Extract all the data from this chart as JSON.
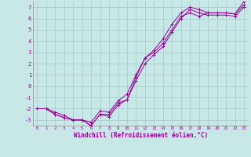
{
  "title": "",
  "xlabel": "Windchill (Refroidissement éolien,°C)",
  "ylabel": "",
  "bg_color": "#c8e8e8",
  "grid_color": "#a8cece",
  "line_color": "#990099",
  "marker": "+",
  "xlim": [
    -0.5,
    23.5
  ],
  "ylim": [
    -3.5,
    7.5
  ],
  "xticks": [
    0,
    1,
    2,
    3,
    4,
    5,
    6,
    7,
    8,
    9,
    10,
    11,
    12,
    13,
    14,
    15,
    16,
    17,
    18,
    19,
    20,
    21,
    22,
    23
  ],
  "yticks": [
    -3,
    -2,
    -1,
    0,
    1,
    2,
    3,
    4,
    5,
    6,
    7
  ],
  "series1_x": [
    0,
    1,
    2,
    3,
    4,
    5,
    6,
    7,
    8,
    9,
    10,
    11,
    12,
    13,
    14,
    15,
    16,
    17,
    18,
    19,
    20,
    21,
    22,
    23
  ],
  "series1_y": [
    -2.0,
    -2.0,
    -2.3,
    -2.6,
    -3.0,
    -3.0,
    -3.2,
    -2.2,
    -2.3,
    -1.3,
    -0.7,
    1.0,
    2.5,
    3.0,
    3.8,
    5.0,
    6.2,
    6.5,
    6.2,
    6.5,
    6.5,
    6.5,
    6.4,
    7.2
  ],
  "series2_x": [
    0,
    1,
    2,
    3,
    4,
    5,
    6,
    7,
    8,
    9,
    10,
    11,
    12,
    13,
    14,
    15,
    16,
    17,
    18,
    19,
    20,
    21,
    22,
    23
  ],
  "series2_y": [
    -2.0,
    -2.0,
    -2.5,
    -2.8,
    -3.0,
    -3.0,
    -3.5,
    -2.5,
    -2.7,
    -1.7,
    -1.2,
    0.5,
    2.0,
    2.8,
    3.5,
    4.8,
    6.0,
    6.8,
    6.5,
    6.3,
    6.3,
    6.3,
    6.2,
    7.0
  ],
  "series3_x": [
    0,
    1,
    2,
    3,
    4,
    5,
    6,
    7,
    8,
    9,
    10,
    11,
    12,
    13,
    14,
    15,
    16,
    17,
    18,
    19,
    20,
    21,
    22,
    23
  ],
  "series3_y": [
    -2.0,
    -2.0,
    -2.5,
    -2.8,
    -3.0,
    -3.0,
    -3.5,
    -2.5,
    -2.5,
    -1.5,
    -1.2,
    0.8,
    2.5,
    3.2,
    4.2,
    5.5,
    6.5,
    7.0,
    6.8,
    6.5,
    6.5,
    6.5,
    6.4,
    7.5
  ]
}
